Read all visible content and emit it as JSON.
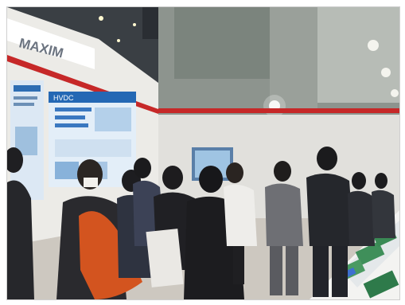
{
  "scene": {
    "brand": "MAXIM",
    "panel_title": "HVDC"
  },
  "colors": {
    "ceiling": "#2e3338",
    "wall_left": "#e9e9e6",
    "red_trim": "#c62828",
    "floor": "#cfcac3",
    "tote_bag": "#d3541f"
  }
}
